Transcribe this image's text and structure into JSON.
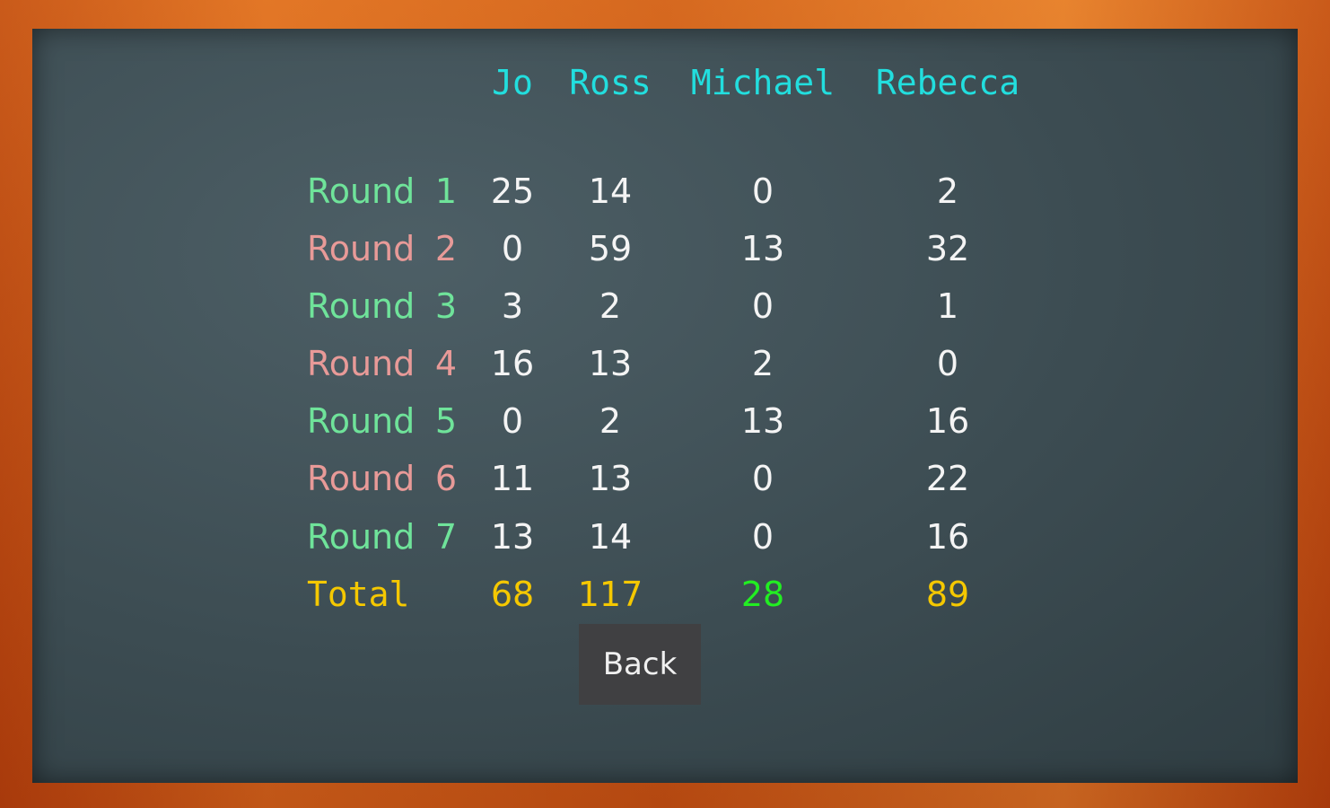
{
  "players": [
    "Jo",
    "Ross",
    "Michael",
    "Rebecca"
  ],
  "rounds": [
    {
      "label": "Round",
      "number": "1",
      "scores": [
        "25",
        "14",
        "0",
        "2"
      ],
      "color": "#6fe39a"
    },
    {
      "label": "Round",
      "number": "2",
      "scores": [
        "0",
        "59",
        "13",
        "32"
      ],
      "color": "#e89a98"
    },
    {
      "label": "Round",
      "number": "3",
      "scores": [
        "3",
        "2",
        "0",
        "1"
      ],
      "color": "#6fe39a"
    },
    {
      "label": "Round",
      "number": "4",
      "scores": [
        "16",
        "13",
        "2",
        "0"
      ],
      "color": "#e89a98"
    },
    {
      "label": "Round",
      "number": "5",
      "scores": [
        "0",
        "2",
        "13",
        "16"
      ],
      "color": "#6fe39a"
    },
    {
      "label": "Round",
      "number": "6",
      "scores": [
        "11",
        "13",
        "0",
        "22"
      ],
      "color": "#e89a98"
    },
    {
      "label": "Round",
      "number": "7",
      "scores": [
        "13",
        "14",
        "0",
        "16"
      ],
      "color": "#6fe39a"
    }
  ],
  "total": {
    "label": "Total",
    "scores": [
      "68",
      "117",
      "28",
      "89"
    ],
    "colors": [
      "#f5c800",
      "#f5c800",
      "#22ee22",
      "#f5c800"
    ]
  },
  "back_label": "Back"
}
